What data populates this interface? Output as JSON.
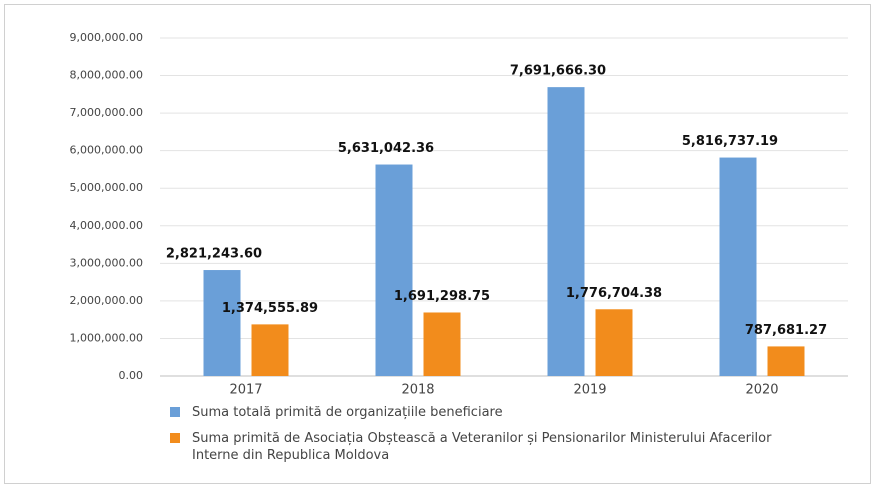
{
  "chart_data": {
    "type": "bar",
    "categories": [
      "2017",
      "2018",
      "2019",
      "2020"
    ],
    "series": [
      {
        "name": "Suma totală primită de organizațiile beneficiare",
        "color": "#6a9fd8",
        "values": [
          2821243.6,
          5631042.36,
          7691666.3,
          5816737.19
        ],
        "value_labels": [
          "2,821,243.60",
          "5,631,042.36",
          "7,691,666.30",
          "5,816,737.19"
        ]
      },
      {
        "name": "Suma primită de Asociația Obștească a Veteranilor și Pensionarilor Ministerului Afacerilor Interne din Republica Moldova",
        "color": "#f28c1c",
        "values": [
          1374555.89,
          1691298.75,
          1776704.38,
          787681.27
        ],
        "value_labels": [
          "1,374,555.89",
          "1,691,298.75",
          "1,776,704.38",
          "787,681.27"
        ]
      }
    ],
    "ylim": [
      0,
      9000000
    ],
    "yticks": [
      {
        "value": 0,
        "label": "0.00"
      },
      {
        "value": 1000000,
        "label": "1,000,000.00"
      },
      {
        "value": 2000000,
        "label": "2,000,000.00"
      },
      {
        "value": 3000000,
        "label": "3,000,000.00"
      },
      {
        "value": 4000000,
        "label": "4,000,000.00"
      },
      {
        "value": 5000000,
        "label": "5,000,000.00"
      },
      {
        "value": 6000000,
        "label": "6,000,000.00"
      },
      {
        "value": 7000000,
        "label": "7,000,000.00"
      },
      {
        "value": 8000000,
        "label": "8,000,000.00"
      },
      {
        "value": 9000000,
        "label": "9,000,000.00"
      }
    ],
    "grid": true
  }
}
